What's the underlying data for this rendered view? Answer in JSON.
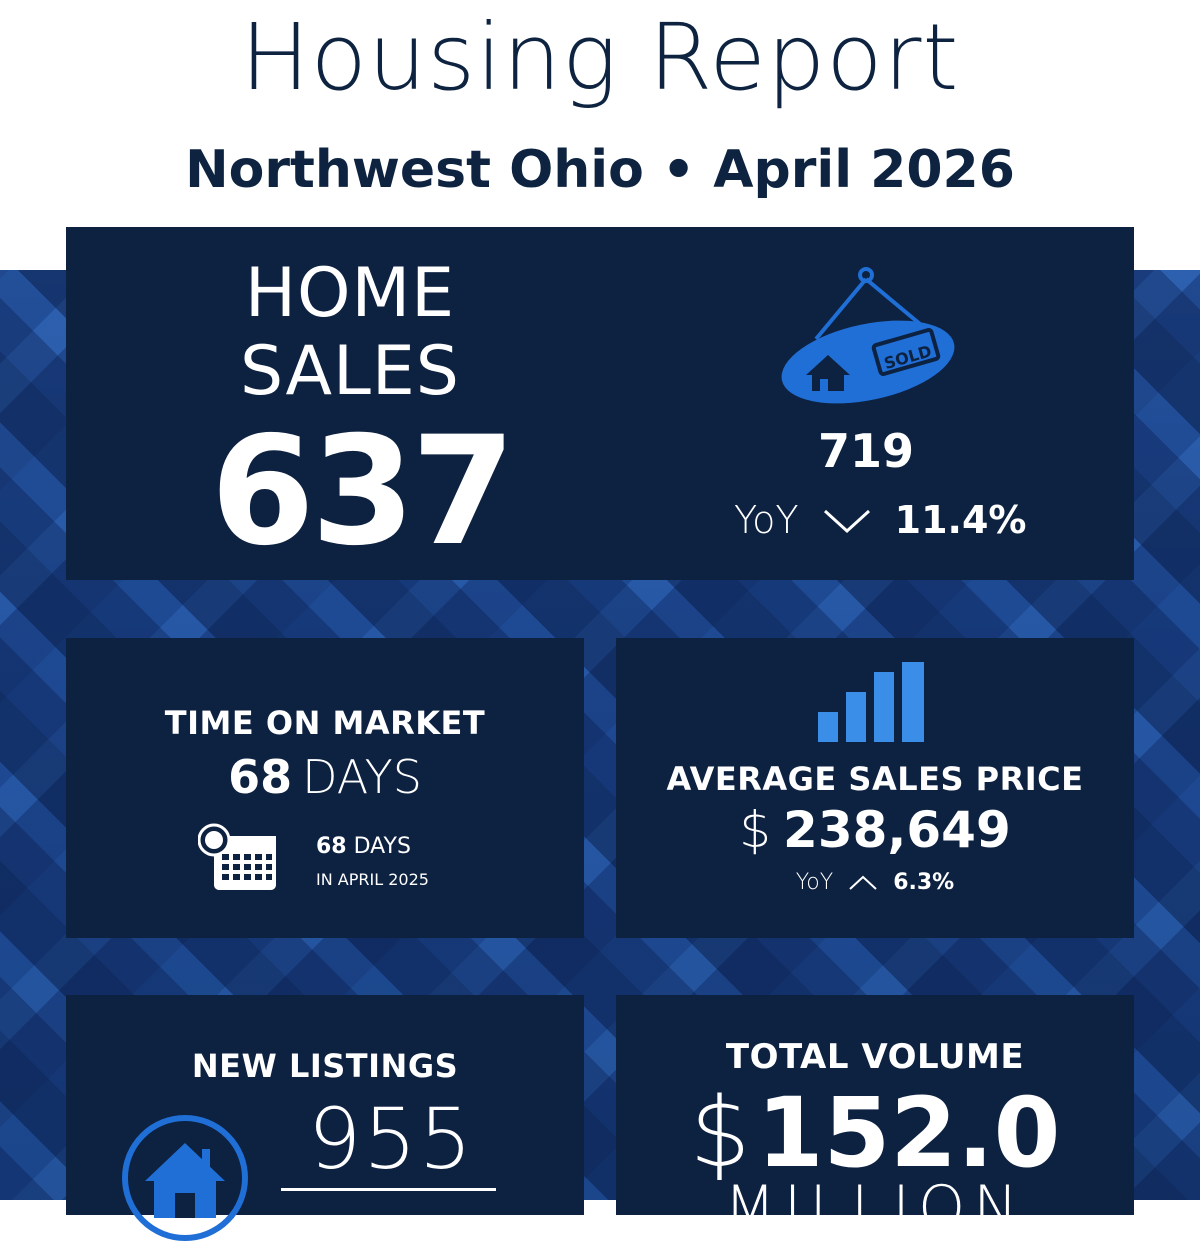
{
  "header": {
    "title": "Housing Report",
    "subtitle": "Northwest Ohio • April 2026"
  },
  "home_sales": {
    "label_line1": "HOME",
    "label_line2": "SALES",
    "value": "637",
    "previous_value": "719",
    "yoy_label": "YoY",
    "yoy_direction": "down",
    "yoy_pct": "11.4%",
    "icon": "sold-sign-icon",
    "sign_text": "SOLD"
  },
  "time_on_market": {
    "label": "TIME ON MARKET",
    "value": "68",
    "unit": "DAYS",
    "previous_value": "68",
    "previous_unit": "DAYS",
    "previous_period": "IN APRIL 2025",
    "icon": "calendar-icon"
  },
  "average_sales_price": {
    "label": "AVERAGE SALES PRICE",
    "currency": "$",
    "value": "238,649",
    "yoy_label": "YoY",
    "yoy_direction": "up",
    "yoy_pct": "6.3%",
    "icon": "bar-chart-icon"
  },
  "new_listings": {
    "label": "NEW LISTINGS",
    "value": "955",
    "icon": "house-icon"
  },
  "total_volume": {
    "label": "TOTAL VOLUME",
    "currency": "$",
    "value": "152.0",
    "unit": "MILLION"
  },
  "colors": {
    "navy_text": "#0d2340",
    "card_bg": "#0d2140",
    "accent_blue": "#1f6fd6",
    "bar_blue": "#3b8ee8"
  }
}
